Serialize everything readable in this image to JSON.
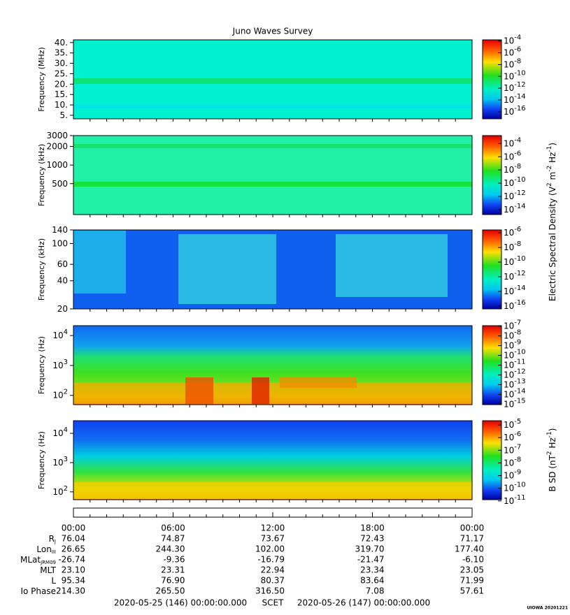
{
  "title": "Juno Waves Survey",
  "panels": [
    {
      "ylabel": "Frequency (MHz)",
      "log": false,
      "ylim": [
        3.3,
        41.3
      ],
      "yticks": [
        {
          "value": 5,
          "label": "5."
        },
        {
          "value": 10,
          "label": "10."
        },
        {
          "value": 15,
          "label": "15."
        },
        {
          "value": 20,
          "label": "20."
        },
        {
          "value": 25,
          "label": "25."
        },
        {
          "value": 30,
          "label": "30."
        },
        {
          "value": 35,
          "label": "35."
        },
        {
          "value": 40,
          "label": "40."
        }
      ],
      "clim": [
        -17.2,
        -3.8
      ],
      "cticks": [
        {
          "value": -4,
          "label": "10^-4"
        },
        {
          "value": -6,
          "label": "10^-6"
        },
        {
          "value": -8,
          "label": "10^-8"
        },
        {
          "value": -10,
          "label": "10^-10"
        },
        {
          "value": -12,
          "label": "10^-12"
        },
        {
          "value": -14,
          "label": "10^-14"
        },
        {
          "value": -16,
          "label": "10^-16"
        }
      ]
    },
    {
      "ylabel": "Frequency (kHz)",
      "log": true,
      "ylim": [
        158,
        3000
      ],
      "yticks": [
        500,
        1000,
        2000,
        3000
      ],
      "clim": [
        -14.75,
        -2.8
      ],
      "cticks": [
        {
          "value": -4,
          "label": "10^-4"
        },
        {
          "value": -6,
          "label": "10^-6"
        },
        {
          "value": -8,
          "label": "10^-8"
        },
        {
          "value": -10,
          "label": "10^-10"
        },
        {
          "value": -12,
          "label": "10^-12"
        },
        {
          "value": -14,
          "label": "10^-14"
        }
      ]
    },
    {
      "ylabel": "Frequency (kHz)",
      "log": true,
      "ylim": [
        20,
        140
      ],
      "yticks": [
        20,
        40,
        60,
        100,
        140
      ],
      "clim": [
        -16.4,
        -5.6
      ],
      "cticks": [
        {
          "value": -6,
          "label": "10^-6"
        },
        {
          "value": -8,
          "label": "10^-8"
        },
        {
          "value": -10,
          "label": "10^-10"
        },
        {
          "value": -12,
          "label": "10^-12"
        },
        {
          "value": -14,
          "label": "10^-14"
        },
        {
          "value": -16,
          "label": "10^-16"
        }
      ]
    },
    {
      "ylabel": "Frequency (Hz)",
      "log": true,
      "ylim": [
        49,
        21400
      ],
      "yticks": [
        {
          "value": 100,
          "label": "10^2"
        },
        {
          "value": 1000,
          "label": "10^3"
        },
        {
          "value": 10000,
          "label": "10^4"
        }
      ],
      "clim": [
        -15.05,
        -6.95
      ],
      "cticks": [
        {
          "value": -7,
          "label": "10^-7"
        },
        {
          "value": -8,
          "label": "10^-8"
        },
        {
          "value": -9,
          "label": "10^-9"
        },
        {
          "value": -10,
          "label": "10^-10"
        },
        {
          "value": -11,
          "label": "10^-11"
        },
        {
          "value": -12,
          "label": "10^-12"
        },
        {
          "value": -13,
          "label": "10^-13"
        },
        {
          "value": -14,
          "label": "10^-14"
        },
        {
          "value": -15,
          "label": "10^-15"
        }
      ]
    },
    {
      "ylabel": "Frequency (Hz)",
      "log": true,
      "ylim": [
        54,
        27000
      ],
      "yticks": [
        {
          "value": 100,
          "label": "10^2"
        },
        {
          "value": 1000,
          "label": "10^3"
        },
        {
          "value": 10000,
          "label": "10^4"
        }
      ],
      "clim": [
        -10.9,
        -4.67
      ],
      "cticks": [
        {
          "value": -5,
          "label": "10^-5"
        },
        {
          "value": -6,
          "label": "10^-6"
        },
        {
          "value": -7,
          "label": "10^-7"
        },
        {
          "value": -8,
          "label": "10^-8"
        },
        {
          "value": -9,
          "label": "10^-9"
        },
        {
          "value": -10,
          "label": "10^-10"
        },
        {
          "value": -11,
          "label": "10^-11"
        }
      ]
    }
  ],
  "colorbar_titles": [
    [
      "Electric Spectral Density (V",
      "2",
      " m",
      "-2",
      " Hz",
      "-1",
      ")"
    ],
    [
      "B SD (nT",
      "2",
      " Hz",
      "-1",
      ")"
    ]
  ],
  "time_ticks": [
    "00:00",
    "06:00",
    "12:00",
    "18:00",
    "00:00"
  ],
  "ephemeris": [
    {
      "label": "R",
      "sub": "J",
      "values": [
        "76.04",
        "74.87",
        "73.67",
        "72.43",
        "71.17"
      ]
    },
    {
      "label": "Lon",
      "sub": "III",
      "values": [
        "26.65",
        "244.30",
        "102.00",
        "319.70",
        "177.40"
      ]
    },
    {
      "label": "MLat",
      "sub": "JRM09",
      "values": [
        "-26.74",
        "-9.36",
        "-16.79",
        "-21.47",
        "-6.10"
      ]
    },
    {
      "label": "MLT",
      "values": [
        "23.10",
        "23.31",
        "22.94",
        "23.34",
        "23.05"
      ]
    },
    {
      "label": "L",
      "values": [
        "95.34",
        "76.90",
        "80.37",
        "83.64",
        "71.99"
      ]
    },
    {
      "label": "Io Phase",
      "values": [
        "214.30",
        "265.50",
        "316.50",
        "7.08",
        "57.61"
      ]
    }
  ],
  "footer": {
    "start": "2020-05-25 (146) 00:00:00.000",
    "scet": "SCET",
    "end": "2020-05-26 (147) 00:00:00.000"
  },
  "stamp": "UIOWA 20201221"
}
